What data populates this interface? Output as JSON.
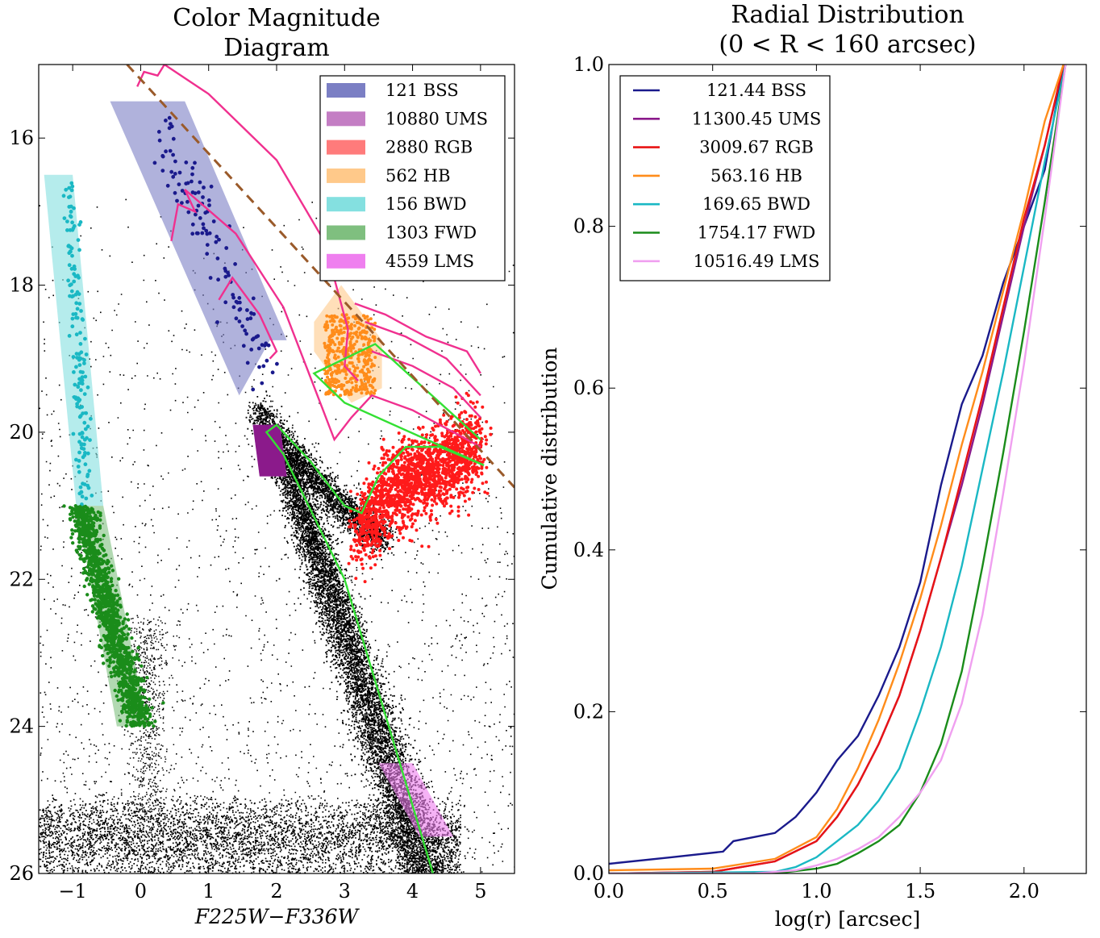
{
  "chart_data": [
    {
      "type": "scatter",
      "title": "Color Magnitude\nDiagram",
      "xlabel": "F225W−F336W",
      "ylabel": "",
      "xlim": [
        -1.5,
        5.5
      ],
      "ylim": [
        26,
        15
      ],
      "y_inverted": true,
      "xticks": [
        "−1",
        "0",
        "1",
        "2",
        "3",
        "4",
        "5"
      ],
      "xtick_values": [
        -1,
        0,
        1,
        2,
        3,
        4,
        5
      ],
      "yticks": [
        "16",
        "18",
        "20",
        "22",
        "24",
        "26"
      ],
      "ytick_values": [
        16,
        18,
        20,
        22,
        24,
        26
      ],
      "legend_position": "top-right",
      "series": [
        {
          "name": "121 BSS",
          "color": "#7b7fc4",
          "count": 121
        },
        {
          "name": "10880 UMS",
          "color": "#c47ec4",
          "count": 10880
        },
        {
          "name": "2880 RGB",
          "color": "#ff7b7b",
          "count": 2880
        },
        {
          "name": "562 HB",
          "color": "#ffc98a",
          "count": 562
        },
        {
          "name": "156 BWD",
          "color": "#84e0e0",
          "count": 156
        },
        {
          "name": "1303 FWD",
          "color": "#7fbf7f",
          "count": 1303
        },
        {
          "name": "4559 LMS",
          "color": "#ef7fef",
          "count": 4559
        }
      ],
      "regions": {
        "BSS": [
          [
            -0.45,
            15.5
          ],
          [
            0.65,
            15.5
          ],
          [
            2.15,
            18.75
          ],
          [
            1.9,
            18.75
          ],
          [
            1.45,
            19.5
          ],
          [
            -0.45,
            15.5
          ]
        ],
        "BWD": [
          [
            -1.42,
            16.5
          ],
          [
            -1.0,
            16.5
          ],
          [
            -0.55,
            21.0
          ],
          [
            -0.95,
            21.0
          ]
        ],
        "FWD": [
          [
            -0.95,
            21.0
          ],
          [
            -0.55,
            21.0
          ],
          [
            0.1,
            24.0
          ],
          [
            -0.35,
            24.0
          ]
        ],
        "UMS": [
          [
            1.65,
            19.9
          ],
          [
            2.05,
            19.9
          ],
          [
            2.15,
            20.6
          ],
          [
            1.75,
            20.6
          ]
        ],
        "LMS": [
          [
            3.5,
            24.5
          ],
          [
            4.0,
            24.5
          ],
          [
            4.6,
            25.5
          ],
          [
            4.1,
            25.5
          ]
        ],
        "HB": [
          [
            2.55,
            18.5
          ],
          [
            2.95,
            18.0
          ],
          [
            3.55,
            18.75
          ],
          [
            3.55,
            19.4
          ],
          [
            3.1,
            19.6
          ],
          [
            2.55,
            18.9
          ]
        ]
      },
      "reference_line": {
        "color": "#9a5a2a",
        "style": "dashed",
        "points": [
          [
            -0.2,
            15.0
          ],
          [
            5.5,
            20.75
          ]
        ]
      },
      "isochrones": {
        "green": [
          [
            [
              4.3,
              26.0
            ],
            [
              3.0,
              22.0
            ],
            [
              2.1,
              20.3
            ],
            [
              1.85,
              20.0
            ],
            [
              2.0,
              19.9
            ],
            [
              2.5,
              20.4
            ],
            [
              3.0,
              21.0
            ],
            [
              3.25,
              21.1
            ],
            [
              3.5,
              20.6
            ],
            [
              3.9,
              20.2
            ],
            [
              4.4,
              20.2
            ],
            [
              5.05,
              20.45
            ],
            [
              3.0,
              19.6
            ],
            [
              2.55,
              19.2
            ],
            [
              3.45,
              18.8
            ],
            [
              5.0,
              20.1
            ]
          ]
        ],
        "magenta": [
          [
            [
              -0.05,
              15.3
            ],
            [
              0.05,
              15.1
            ],
            [
              0.25,
              15.15
            ],
            [
              0.35,
              15.0
            ]
          ],
          [
            [
              0.35,
              15.0
            ],
            [
              1.0,
              15.4
            ],
            [
              2.0,
              16.3
            ],
            [
              2.7,
              17.4
            ],
            [
              3.05,
              18.6
            ],
            [
              3.0,
              19.1
            ],
            [
              3.2,
              19.3
            ]
          ],
          [
            [
              0.45,
              17.4
            ],
            [
              0.55,
              16.9
            ],
            [
              0.8,
              17.0
            ],
            [
              0.65,
              16.7
            ],
            [
              1.4,
              17.3
            ],
            [
              2.1,
              18.3
            ],
            [
              2.6,
              19.5
            ],
            [
              2.85,
              20.1
            ],
            [
              3.1,
              19.8
            ],
            [
              3.4,
              19.5
            ],
            [
              4.0,
              19.7
            ],
            [
              5.0,
              20.2
            ]
          ],
          [
            [
              1.15,
              18.2
            ],
            [
              1.35,
              17.9
            ],
            [
              1.75,
              18.4
            ],
            [
              2.0,
              18.9
            ],
            [
              1.9,
              19.0
            ]
          ],
          [
            [
              3.15,
              18.25
            ],
            [
              3.6,
              18.4
            ],
            [
              4.2,
              18.7
            ],
            [
              4.8,
              18.9
            ],
            [
              5.0,
              19.2
            ]
          ],
          [
            [
              3.3,
              18.5
            ],
            [
              3.9,
              18.7
            ],
            [
              4.5,
              19.0
            ],
            [
              5.0,
              19.5
            ]
          ],
          [
            [
              3.4,
              18.9
            ],
            [
              4.0,
              19.1
            ],
            [
              4.6,
              19.4
            ],
            [
              5.0,
              19.8
            ]
          ]
        ]
      }
    },
    {
      "type": "line",
      "title": "Radial Distribution\n(0 < R < 160 arcsec)",
      "xlabel": "log(r) [arcsec]",
      "ylabel": "Cumulative distribution",
      "xlim": [
        0.0,
        2.3
      ],
      "ylim": [
        0.0,
        1.0
      ],
      "xticks": [
        "0.0",
        "0.5",
        "1.0",
        "1.5",
        "2.0"
      ],
      "xtick_values": [
        0.0,
        0.5,
        1.0,
        1.5,
        2.0
      ],
      "yticks": [
        "0.0",
        "0.2",
        "0.4",
        "0.6",
        "0.8",
        "1.0"
      ],
      "ytick_values": [
        0.0,
        0.2,
        0.4,
        0.6,
        0.8,
        1.0
      ],
      "legend_position": "top-left",
      "series": [
        {
          "name": "121.44 BSS",
          "color": "#1a1a8c",
          "x": [
            0.0,
            0.3,
            0.55,
            0.6,
            0.8,
            0.9,
            1.0,
            1.1,
            1.2,
            1.3,
            1.4,
            1.5,
            1.6,
            1.7,
            1.8,
            1.9,
            2.0,
            2.1,
            2.19
          ],
          "y": [
            0.012,
            0.02,
            0.027,
            0.04,
            0.05,
            0.07,
            0.1,
            0.14,
            0.17,
            0.22,
            0.28,
            0.36,
            0.48,
            0.58,
            0.64,
            0.73,
            0.8,
            0.87,
            1.0
          ]
        },
        {
          "name": "11300.45 UMS",
          "color": "#8b1a8b",
          "x": [
            0.0,
            0.5,
            0.8,
            1.0,
            1.1,
            1.2,
            1.3,
            1.4,
            1.5,
            1.6,
            1.7,
            1.8,
            1.9,
            2.0,
            2.1,
            2.19
          ],
          "y": [
            0.0,
            0.002,
            0.015,
            0.04,
            0.07,
            0.11,
            0.16,
            0.22,
            0.3,
            0.39,
            0.48,
            0.58,
            0.69,
            0.8,
            0.9,
            1.0
          ]
        },
        {
          "name": "3009.67 RGB",
          "color": "#e81414",
          "x": [
            0.0,
            0.5,
            0.8,
            1.0,
            1.1,
            1.2,
            1.3,
            1.4,
            1.5,
            1.6,
            1.7,
            1.8,
            1.9,
            2.0,
            2.1,
            2.19
          ],
          "y": [
            0.0,
            0.002,
            0.015,
            0.04,
            0.07,
            0.11,
            0.16,
            0.22,
            0.3,
            0.39,
            0.49,
            0.59,
            0.7,
            0.81,
            0.9,
            1.0
          ]
        },
        {
          "name": "563.16 HB",
          "color": "#ff8c1a",
          "x": [
            0.0,
            0.5,
            0.8,
            1.0,
            1.1,
            1.2,
            1.3,
            1.4,
            1.5,
            1.6,
            1.7,
            1.8,
            1.9,
            2.0,
            2.1,
            2.19
          ],
          "y": [
            0.004,
            0.006,
            0.018,
            0.045,
            0.08,
            0.13,
            0.19,
            0.26,
            0.34,
            0.43,
            0.53,
            0.62,
            0.72,
            0.82,
            0.93,
            1.0
          ]
        },
        {
          "name": "169.65 BWD",
          "color": "#1ab8c4",
          "x": [
            0.0,
            0.8,
            0.9,
            1.0,
            1.1,
            1.2,
            1.3,
            1.4,
            1.5,
            1.6,
            1.7,
            1.8,
            1.9,
            2.0,
            2.1,
            2.2
          ],
          "y": [
            0.0,
            0.002,
            0.008,
            0.02,
            0.04,
            0.06,
            0.09,
            0.13,
            0.2,
            0.28,
            0.38,
            0.5,
            0.62,
            0.75,
            0.88,
            1.0
          ]
        },
        {
          "name": "1754.17 FWD",
          "color": "#1a8c1a",
          "x": [
            0.0,
            0.8,
            1.0,
            1.1,
            1.2,
            1.3,
            1.4,
            1.5,
            1.6,
            1.7,
            1.8,
            1.9,
            2.0,
            2.1,
            2.2
          ],
          "y": [
            0.0,
            0.0,
            0.006,
            0.012,
            0.025,
            0.04,
            0.06,
            0.1,
            0.16,
            0.25,
            0.38,
            0.52,
            0.67,
            0.83,
            1.0
          ]
        },
        {
          "name": "10516.49 LMS",
          "color": "#f0a0f0",
          "x": [
            0.0,
            0.7,
            0.9,
            1.0,
            1.1,
            1.2,
            1.3,
            1.4,
            1.5,
            1.6,
            1.7,
            1.8,
            1.9,
            2.0,
            2.1,
            2.2
          ],
          "y": [
            0.0,
            0.0,
            0.004,
            0.01,
            0.018,
            0.03,
            0.045,
            0.07,
            0.1,
            0.14,
            0.21,
            0.32,
            0.47,
            0.63,
            0.81,
            1.0
          ]
        }
      ]
    }
  ]
}
